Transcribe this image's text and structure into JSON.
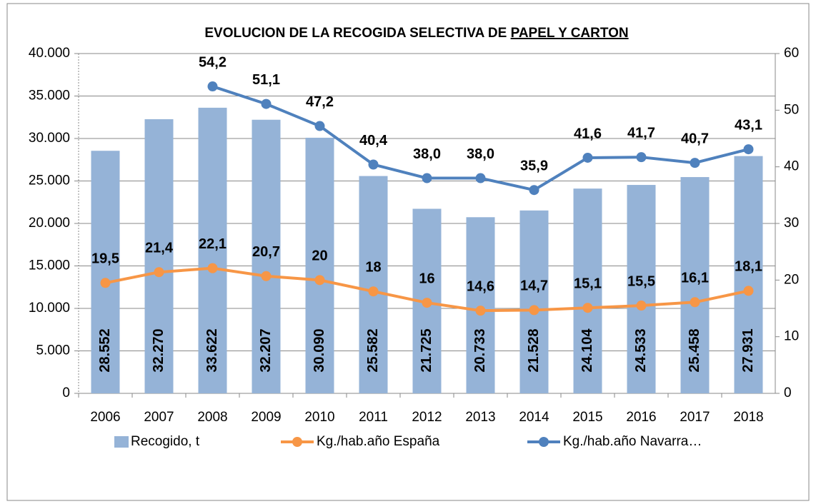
{
  "chart_data": {
    "type": "bar_line",
    "title": [
      "EVOLUCION DE LA RECOGIDA SELECTIVA DE ",
      "PAPEL Y CARTON"
    ],
    "categories": [
      "2006",
      "2007",
      "2008",
      "2009",
      "2010",
      "2011",
      "2012",
      "2013",
      "2014",
      "2015",
      "2016",
      "2017",
      "2018"
    ],
    "series": [
      {
        "name": "Recogido, t",
        "type": "bar",
        "color": "#95b3d7",
        "label_color": "#1f3b74",
        "values": [
          28552,
          32270,
          33622,
          32207,
          30090,
          25582,
          21725,
          20733,
          21528,
          24104,
          24533,
          25458,
          27931
        ],
        "value_labels": [
          "28.552",
          "32.270",
          "33.622",
          "32.207",
          "30.090",
          "25.582",
          "21.725",
          "20.733",
          "21.528",
          "24.104",
          "24.533",
          "25.458",
          "27.931"
        ]
      },
      {
        "name": "Kg./hab.año España",
        "type": "line",
        "axis": "y2",
        "color": "#f79646",
        "label_color": "#a5400f",
        "values": [
          19.5,
          21.4,
          22.1,
          20.7,
          20,
          18,
          16,
          14.6,
          14.7,
          15.1,
          15.5,
          16.1,
          18.1
        ],
        "value_labels": [
          "19,5",
          "21,4",
          "22,1",
          "20,7",
          "20",
          "18",
          "16",
          "14,6",
          "14,7",
          "15,1",
          "15,5",
          "16,1",
          "18,1"
        ]
      },
      {
        "name": "Kg./hab.año Navarra…",
        "type": "line",
        "axis": "y2",
        "color": "#4f81bd",
        "label_color": "#7070a8",
        "values": [
          null,
          null,
          54.2,
          51.1,
          47.2,
          40.4,
          38.0,
          38.0,
          35.9,
          41.6,
          41.7,
          40.7,
          43.1
        ],
        "value_labels": [
          null,
          null,
          "54,2",
          "51,1",
          "47,2",
          "40,4",
          "38,0",
          "38,0",
          "35,9",
          "41,6",
          "41,7",
          "40,7",
          "43,1"
        ]
      }
    ],
    "ylim": [
      0,
      40000
    ],
    "yticks": [
      0,
      {
        "value": 5000,
        "label": "5.000"
      },
      {
        "value": 10000,
        "label": "10.000"
      },
      {
        "value": 15000,
        "label": "15.000"
      },
      {
        "value": 20000,
        "label": "20.000"
      },
      {
        "value": 25000,
        "label": "25.000"
      },
      {
        "value": 30000,
        "label": "30.000"
      },
      {
        "value": 35000,
        "label": "35.000"
      },
      {
        "value": 40000,
        "label": "40.000"
      }
    ],
    "y2lim": [
      0,
      60
    ],
    "y2ticks": [
      0,
      10,
      20,
      30,
      40,
      50,
      60
    ],
    "grid": true,
    "legend": "bottom"
  }
}
